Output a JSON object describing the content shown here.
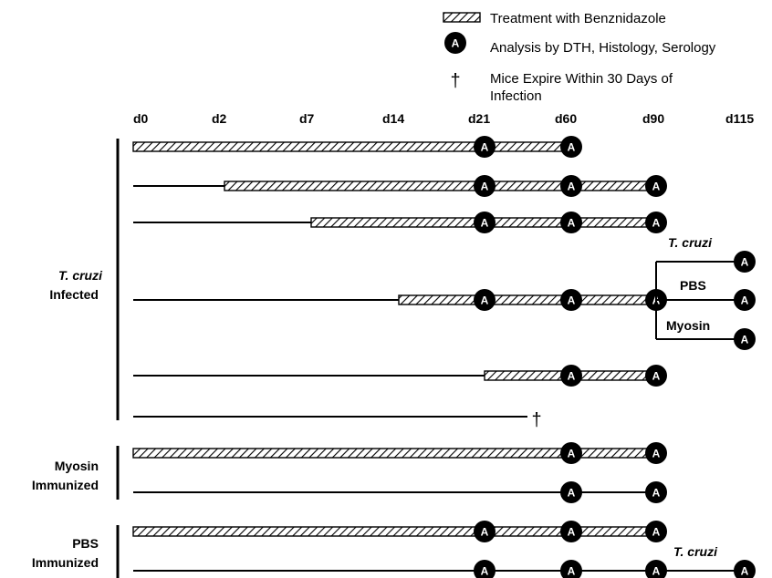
{
  "legend": {
    "treatment_label": "Treatment with Benznidazole",
    "analysis_label": "Analysis by DTH, Histology, Serology",
    "analysis_marker": "A",
    "expire_symbol": "†",
    "expire_line1": "Mice Expire Within 30 Days of",
    "expire_line2": "Infection"
  },
  "timeline": {
    "days": [
      "d0",
      "d2",
      "d7",
      "d14",
      "d21",
      "d60",
      "d90",
      "d115"
    ]
  },
  "groups": {
    "infected": {
      "line1": "T. cruzi",
      "line2": "Infected"
    },
    "myosin": {
      "line1": "Myosin",
      "line2": "Immunized"
    },
    "pbs": {
      "line1": "PBS",
      "line2": "Immunized"
    }
  },
  "branches": {
    "tcruzi": "T. cruzi",
    "pbs": "PBS",
    "myosin": "Myosin",
    "tcruzi_bottom": "T. cruzi"
  },
  "rows": [
    {
      "line_start": null,
      "treat": [
        "d0",
        "d60"
      ],
      "analysis": [
        "d21",
        "d60"
      ],
      "expire": null
    },
    {
      "line_start": "d0",
      "treat": [
        "d2",
        "d90"
      ],
      "analysis": [
        "d21",
        "d60",
        "d90"
      ],
      "expire": null
    },
    {
      "line_start": "d0",
      "treat": [
        "d7",
        "d90"
      ],
      "analysis": [
        "d21",
        "d60",
        "d90"
      ],
      "expire": null
    },
    {
      "line_start": "d0",
      "treat": [
        "d14",
        "d90"
      ],
      "analysis": [
        "d21",
        "d60",
        "d90"
      ],
      "expire": null
    },
    {
      "line_start": "d0",
      "treat": [
        "d21",
        "d90"
      ],
      "analysis": [
        "d60",
        "d90"
      ],
      "expire": null
    },
    {
      "line_start": "d0",
      "treat": null,
      "analysis": [],
      "expire": "d21+"
    },
    {
      "line_start": null,
      "treat": [
        "d0",
        "d90"
      ],
      "analysis": [
        "d60",
        "d90"
      ],
      "expire": null
    },
    {
      "line_start": "d0",
      "treat": null,
      "analysis": [
        "d60",
        "d90"
      ],
      "expire": null
    },
    {
      "line_start": null,
      "treat": [
        "d0",
        "d90"
      ],
      "analysis": [
        "d21",
        "d60",
        "d90"
      ],
      "expire": null
    },
    {
      "line_start": "d0",
      "treat": null,
      "analysis": [
        "d21",
        "d60",
        "d90",
        "d115"
      ],
      "expire": null
    }
  ]
}
